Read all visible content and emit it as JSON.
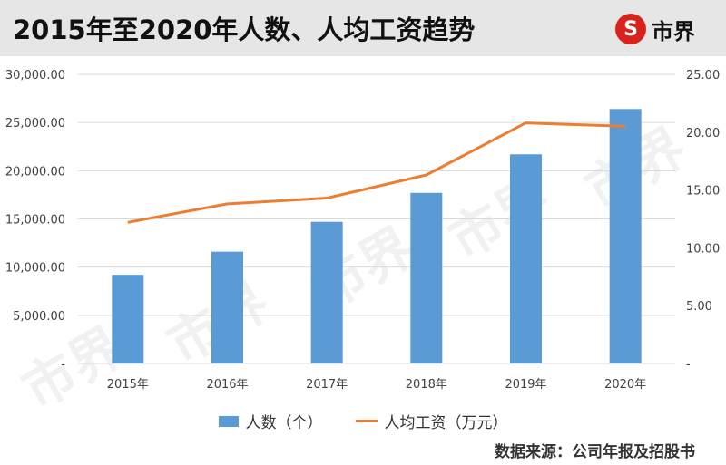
{
  "header": {
    "title": "2015年至2020年人数、人均工资趋势",
    "logo_text": "市界",
    "logo_glyph": "S"
  },
  "source": "数据来源：公司年报及招股书",
  "colors": {
    "bar": "#5b9bd5",
    "line": "#ed7d31",
    "grid": "#d9d9d9",
    "axis_text": "#404040"
  },
  "chart_data": {
    "type": "bar",
    "categories": [
      "2015年",
      "2016年",
      "2017年",
      "2018年",
      "2019年",
      "2020年"
    ],
    "series": [
      {
        "name": "人数（个）",
        "type": "bar",
        "axis": "left",
        "values": [
          9200,
          11600,
          14700,
          17700,
          21700,
          26400
        ]
      },
      {
        "name": "人均工资（万元）",
        "type": "line",
        "axis": "right",
        "values": [
          12.2,
          13.8,
          14.3,
          16.3,
          20.8,
          20.5
        ]
      }
    ],
    "ylim_left": [
      0,
      30000
    ],
    "ylim_right": [
      0,
      25
    ],
    "yticks_left": [
      "-",
      "5,000.00",
      "10,000.00",
      "15,000.00",
      "20,000.00",
      "25,000.00",
      "30,000.00"
    ],
    "yticks_right": [
      "-",
      "5.00",
      "10.00",
      "15.00",
      "20.00",
      "25.00"
    ],
    "grid": true,
    "legend_position": "bottom"
  }
}
